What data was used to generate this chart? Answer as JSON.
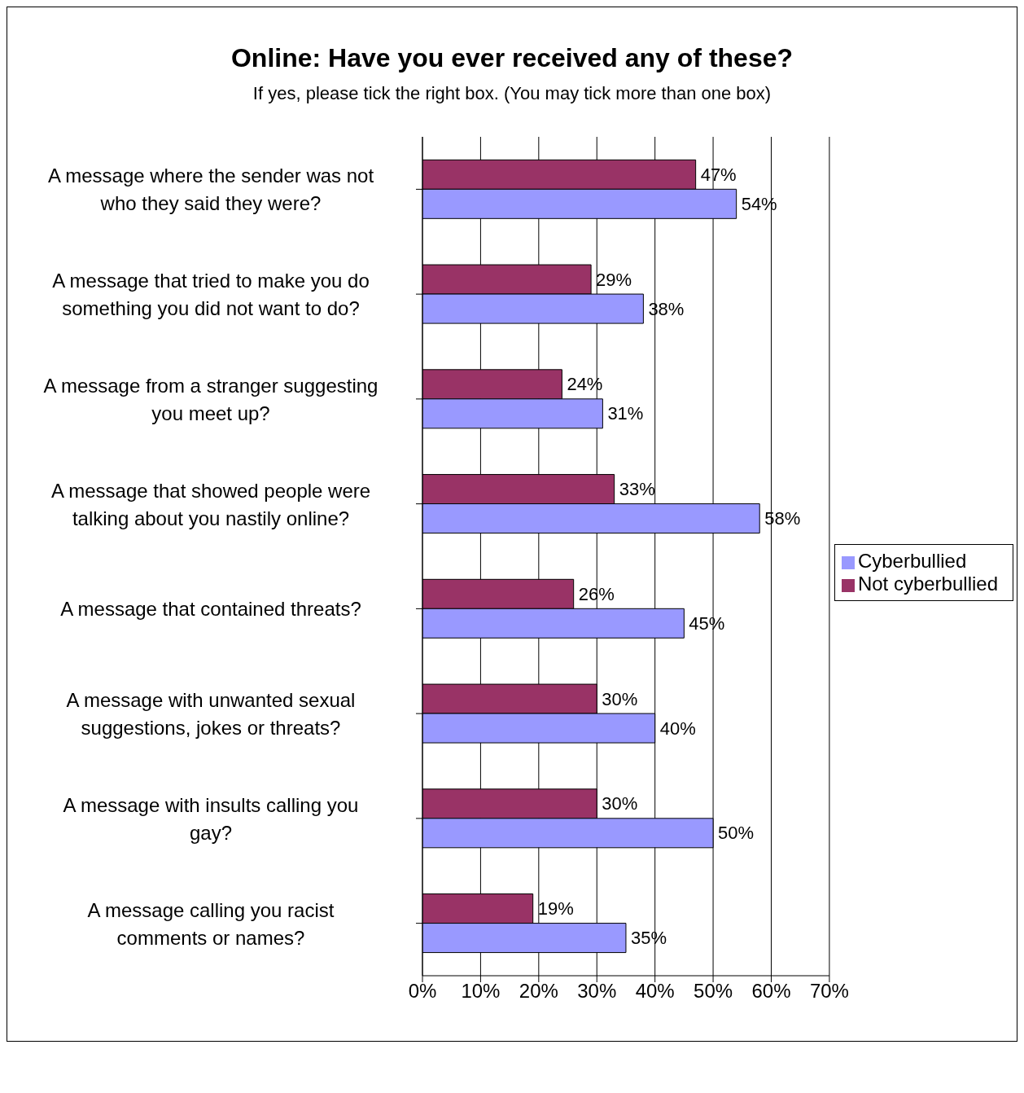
{
  "chart_data": {
    "type": "bar",
    "orientation": "horizontal",
    "title": "Online: Have you ever received any of these?",
    "subtitle": "If yes, please tick the right box. (You may tick more than one box)",
    "categories": [
      "A message where the sender was not who they said they were?",
      "A message that tried to make you do something you did not want to do?",
      "A message from a stranger suggesting you meet up?",
      "A message that showed people were talking about you nastily online?",
      "A message that contained threats?",
      "A message with unwanted sexual suggestions, jokes or threats?",
      "A message with insults calling you gay?",
      "A message calling you racist comments or names?"
    ],
    "series": [
      {
        "name": "Not cyberbullied",
        "color": "#993366",
        "values": [
          47,
          29,
          24,
          33,
          26,
          30,
          30,
          19
        ],
        "value_labels": [
          "47%",
          "29%",
          "24%",
          "33%",
          "26%",
          "30%",
          "30%",
          "19%"
        ]
      },
      {
        "name": "Cyberbullied",
        "color": "#9999ff",
        "values": [
          54,
          38,
          31,
          58,
          45,
          40,
          50,
          35
        ],
        "value_labels": [
          "54%",
          "38%",
          "31%",
          "58%",
          "45%",
          "40%",
          "50%",
          "35%"
        ]
      }
    ],
    "xlim": [
      0,
      70
    ],
    "xticks": [
      {
        "value": 0,
        "label": "0%"
      },
      {
        "value": 10,
        "label": "10%"
      },
      {
        "value": 20,
        "label": "20%"
      },
      {
        "value": 30,
        "label": "30%"
      },
      {
        "value": 40,
        "label": "40%"
      },
      {
        "value": 50,
        "label": "50%"
      },
      {
        "value": 60,
        "label": "60%"
      },
      {
        "value": 70,
        "label": "70%"
      }
    ],
    "grid": "x",
    "legend": "right"
  }
}
